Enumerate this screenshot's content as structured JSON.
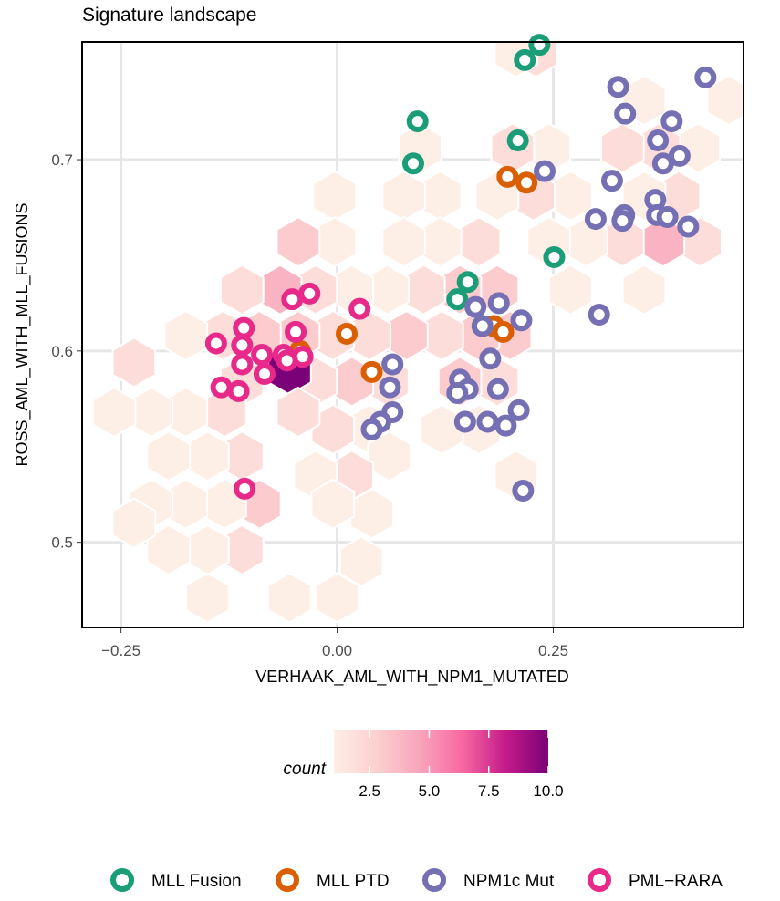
{
  "chart_data": {
    "type": "scatter",
    "title": "Signature landscape",
    "xlabel": "VERHAAK_AML_WITH_NPM1_MUTATED",
    "ylabel": "ROSS_AML_WITH_MLL_FUSIONS",
    "xlim": [
      -0.295,
      0.47
    ],
    "ylim": [
      0.4555,
      0.7615
    ],
    "x_ticks": [
      -0.25,
      0.0,
      0.25
    ],
    "x_tick_labels": [
      "−0.25",
      "0.00",
      "0.25"
    ],
    "y_ticks": [
      0.5,
      0.6,
      0.7
    ],
    "y_tick_labels": [
      "0.5",
      "0.6",
      "0.7"
    ],
    "grid": true,
    "hexbin": {
      "fill_label": "count",
      "colorbar_ticks": [
        2.5,
        5.0,
        7.5,
        10.0
      ],
      "colorbar_tick_labels": [
        "2.5",
        "5.0",
        "7.5",
        "10.0"
      ],
      "count_range": [
        1,
        10
      ],
      "colors": [
        "#fdeee6",
        "#fbd0cf",
        "#f8a5bc",
        "#f768a1",
        "#c51b8a",
        "#7a0177"
      ],
      "hexes": [
        {
          "x": 0.453,
          "y": 0.731,
          "count": 1
        },
        {
          "x": 0.355,
          "y": 0.731,
          "count": 1
        },
        {
          "x": 0.23,
          "y": 0.756,
          "count": 2
        },
        {
          "x": 0.207,
          "y": 0.756,
          "count": 1
        },
        {
          "x": 0.418,
          "y": 0.706,
          "count": 1
        },
        {
          "x": 0.372,
          "y": 0.706,
          "count": 2
        },
        {
          "x": 0.33,
          "y": 0.706,
          "count": 2
        },
        {
          "x": 0.245,
          "y": 0.706,
          "count": 1
        },
        {
          "x": 0.203,
          "y": 0.706,
          "count": 2
        },
        {
          "x": 0.096,
          "y": 0.706,
          "count": 1
        },
        {
          "x": 0.395,
          "y": 0.681,
          "count": 2
        },
        {
          "x": 0.355,
          "y": 0.681,
          "count": 1
        },
        {
          "x": 0.27,
          "y": 0.681,
          "count": 1
        },
        {
          "x": 0.227,
          "y": 0.681,
          "count": 2
        },
        {
          "x": 0.185,
          "y": 0.681,
          "count": 1
        },
        {
          "x": 0.119,
          "y": 0.681,
          "count": 1
        },
        {
          "x": 0.077,
          "y": 0.681,
          "count": 1
        },
        {
          "x": -0.003,
          "y": 0.681,
          "count": 1
        },
        {
          "x": 0.42,
          "y": 0.657,
          "count": 2
        },
        {
          "x": 0.377,
          "y": 0.657,
          "count": 4
        },
        {
          "x": 0.33,
          "y": 0.657,
          "count": 2
        },
        {
          "x": 0.288,
          "y": 0.657,
          "count": 1
        },
        {
          "x": 0.245,
          "y": 0.657,
          "count": 1
        },
        {
          "x": 0.164,
          "y": 0.657,
          "count": 2
        },
        {
          "x": 0.119,
          "y": 0.657,
          "count": 1
        },
        {
          "x": 0.077,
          "y": 0.657,
          "count": 1
        },
        {
          "x": -0.003,
          "y": 0.657,
          "count": 1
        },
        {
          "x": -0.045,
          "y": 0.657,
          "count": 3
        },
        {
          "x": 0.355,
          "y": 0.632,
          "count": 1
        },
        {
          "x": 0.27,
          "y": 0.632,
          "count": 1
        },
        {
          "x": 0.185,
          "y": 0.632,
          "count": 3
        },
        {
          "x": 0.142,
          "y": 0.632,
          "count": 3
        },
        {
          "x": 0.1,
          "y": 0.632,
          "count": 2
        },
        {
          "x": 0.058,
          "y": 0.632,
          "count": 1
        },
        {
          "x": 0.017,
          "y": 0.632,
          "count": 1
        },
        {
          "x": -0.025,
          "y": 0.632,
          "count": 2
        },
        {
          "x": -0.066,
          "y": 0.632,
          "count": 4
        },
        {
          "x": -0.11,
          "y": 0.632,
          "count": 2
        },
        {
          "x": 0.2,
          "y": 0.608,
          "count": 3
        },
        {
          "x": 0.163,
          "y": 0.608,
          "count": 3
        },
        {
          "x": 0.121,
          "y": 0.608,
          "count": 2
        },
        {
          "x": 0.08,
          "y": 0.608,
          "count": 3
        },
        {
          "x": 0.037,
          "y": 0.608,
          "count": 2
        },
        {
          "x": -0.005,
          "y": 0.608,
          "count": 2
        },
        {
          "x": -0.045,
          "y": 0.608,
          "count": 3
        },
        {
          "x": -0.09,
          "y": 0.608,
          "count": 3
        },
        {
          "x": -0.132,
          "y": 0.608,
          "count": 2
        },
        {
          "x": -0.175,
          "y": 0.608,
          "count": 1
        },
        {
          "x": 0.185,
          "y": 0.584,
          "count": 2
        },
        {
          "x": 0.142,
          "y": 0.584,
          "count": 3
        },
        {
          "x": 0.058,
          "y": 0.584,
          "count": 2
        },
        {
          "x": 0.017,
          "y": 0.584,
          "count": 3
        },
        {
          "x": -0.025,
          "y": 0.584,
          "count": 2
        },
        {
          "x": -0.055,
          "y": 0.59,
          "count": 10
        },
        {
          "x": -0.11,
          "y": 0.584,
          "count": 2
        },
        {
          "x": -0.235,
          "y": 0.594,
          "count": 2
        },
        {
          "x": 0.164,
          "y": 0.559,
          "count": 1
        },
        {
          "x": 0.121,
          "y": 0.559,
          "count": 1
        },
        {
          "x": 0.037,
          "y": 0.559,
          "count": 1
        },
        {
          "x": -0.005,
          "y": 0.559,
          "count": 2
        },
        {
          "x": -0.045,
          "y": 0.568,
          "count": 2
        },
        {
          "x": -0.13,
          "y": 0.568,
          "count": 2
        },
        {
          "x": -0.175,
          "y": 0.568,
          "count": 1
        },
        {
          "x": -0.215,
          "y": 0.568,
          "count": 1
        },
        {
          "x": -0.258,
          "y": 0.568,
          "count": 1
        },
        {
          "x": 0.207,
          "y": 0.535,
          "count": 1
        },
        {
          "x": 0.06,
          "y": 0.545,
          "count": 1
        },
        {
          "x": 0.017,
          "y": 0.535,
          "count": 2
        },
        {
          "x": -0.025,
          "y": 0.535,
          "count": 1
        },
        {
          "x": -0.11,
          "y": 0.545,
          "count": 2
        },
        {
          "x": -0.15,
          "y": 0.545,
          "count": 1
        },
        {
          "x": -0.195,
          "y": 0.545,
          "count": 1
        },
        {
          "x": 0.04,
          "y": 0.515,
          "count": 1
        },
        {
          "x": -0.005,
          "y": 0.52,
          "count": 1
        },
        {
          "x": -0.09,
          "y": 0.52,
          "count": 3
        },
        {
          "x": -0.13,
          "y": 0.52,
          "count": 1
        },
        {
          "x": -0.175,
          "y": 0.52,
          "count": 1
        },
        {
          "x": -0.215,
          "y": 0.52,
          "count": 1
        },
        {
          "x": -0.11,
          "y": 0.496,
          "count": 2
        },
        {
          "x": -0.15,
          "y": 0.496,
          "count": 1
        },
        {
          "x": -0.195,
          "y": 0.496,
          "count": 1
        },
        {
          "x": -0.235,
          "y": 0.51,
          "count": 1
        },
        {
          "x": 0.028,
          "y": 0.49,
          "count": 1
        },
        {
          "x": -0.15,
          "y": 0.471,
          "count": 1
        },
        {
          "x": -0.055,
          "y": 0.471,
          "count": 1
        },
        {
          "x": 0.0,
          "y": 0.471,
          "count": 1
        }
      ]
    },
    "series": [
      {
        "name": "MLL Fusion",
        "color": "#1b9e77",
        "points": [
          {
            "x": 0.234,
            "y": 0.76
          },
          {
            "x": 0.217,
            "y": 0.752
          },
          {
            "x": 0.093,
            "y": 0.72
          },
          {
            "x": 0.088,
            "y": 0.698
          },
          {
            "x": 0.209,
            "y": 0.71
          },
          {
            "x": 0.251,
            "y": 0.649
          },
          {
            "x": 0.151,
            "y": 0.636
          },
          {
            "x": 0.139,
            "y": 0.627
          }
        ]
      },
      {
        "name": "MLL PTD",
        "color": "#d95f02",
        "points": [
          {
            "x": 0.197,
            "y": 0.691
          },
          {
            "x": 0.219,
            "y": 0.688
          },
          {
            "x": 0.181,
            "y": 0.613
          },
          {
            "x": 0.192,
            "y": 0.61
          },
          {
            "x": 0.011,
            "y": 0.609
          },
          {
            "x": -0.043,
            "y": 0.6
          },
          {
            "x": 0.04,
            "y": 0.589
          }
        ]
      },
      {
        "name": "NPM1c Mut",
        "color": "#7570b3",
        "points": [
          {
            "x": 0.426,
            "y": 0.743
          },
          {
            "x": 0.325,
            "y": 0.738
          },
          {
            "x": 0.333,
            "y": 0.724
          },
          {
            "x": 0.387,
            "y": 0.72
          },
          {
            "x": 0.371,
            "y": 0.71
          },
          {
            "x": 0.396,
            "y": 0.702
          },
          {
            "x": 0.377,
            "y": 0.698
          },
          {
            "x": 0.24,
            "y": 0.694
          },
          {
            "x": 0.318,
            "y": 0.689
          },
          {
            "x": 0.368,
            "y": 0.679
          },
          {
            "x": 0.332,
            "y": 0.671
          },
          {
            "x": 0.37,
            "y": 0.671
          },
          {
            "x": 0.382,
            "y": 0.67
          },
          {
            "x": 0.299,
            "y": 0.669
          },
          {
            "x": 0.33,
            "y": 0.668
          },
          {
            "x": 0.406,
            "y": 0.665
          },
          {
            "x": 0.303,
            "y": 0.619
          },
          {
            "x": 0.16,
            "y": 0.623
          },
          {
            "x": 0.187,
            "y": 0.625
          },
          {
            "x": 0.213,
            "y": 0.616
          },
          {
            "x": 0.168,
            "y": 0.613
          },
          {
            "x": 0.064,
            "y": 0.593
          },
          {
            "x": 0.177,
            "y": 0.596
          },
          {
            "x": 0.142,
            "y": 0.585
          },
          {
            "x": 0.061,
            "y": 0.581
          },
          {
            "x": 0.151,
            "y": 0.58
          },
          {
            "x": 0.139,
            "y": 0.578
          },
          {
            "x": 0.186,
            "y": 0.58
          },
          {
            "x": 0.064,
            "y": 0.568
          },
          {
            "x": 0.21,
            "y": 0.569
          },
          {
            "x": 0.05,
            "y": 0.563
          },
          {
            "x": 0.148,
            "y": 0.563
          },
          {
            "x": 0.174,
            "y": 0.563
          },
          {
            "x": 0.195,
            "y": 0.561
          },
          {
            "x": 0.04,
            "y": 0.559
          },
          {
            "x": 0.215,
            "y": 0.527
          }
        ]
      },
      {
        "name": "PML−RARA",
        "color": "#e7298a",
        "points": [
          {
            "x": -0.032,
            "y": 0.63
          },
          {
            "x": -0.052,
            "y": 0.627
          },
          {
            "x": 0.026,
            "y": 0.622
          },
          {
            "x": -0.108,
            "y": 0.612
          },
          {
            "x": -0.048,
            "y": 0.61
          },
          {
            "x": -0.14,
            "y": 0.604
          },
          {
            "x": -0.11,
            "y": 0.603
          },
          {
            "x": -0.087,
            "y": 0.598
          },
          {
            "x": -0.062,
            "y": 0.598
          },
          {
            "x": -0.04,
            "y": 0.597
          },
          {
            "x": -0.058,
            "y": 0.595
          },
          {
            "x": -0.11,
            "y": 0.593
          },
          {
            "x": -0.084,
            "y": 0.588
          },
          {
            "x": -0.134,
            "y": 0.581
          },
          {
            "x": -0.114,
            "y": 0.579
          },
          {
            "x": -0.107,
            "y": 0.528
          }
        ]
      }
    ],
    "legend_position": "bottom",
    "colorbar_position": "bottom"
  }
}
